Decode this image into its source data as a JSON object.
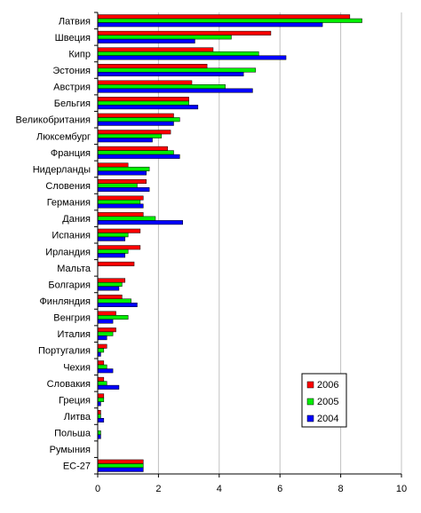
{
  "chart_data": {
    "type": "bar",
    "orientation": "horizontal",
    "categories": [
      "Латвия",
      "Швеция",
      "Кипр",
      "Эстония",
      "Австрия",
      "Бельгия",
      "Великобритания",
      "Люксембург",
      "Франция",
      "Нидерланды",
      "Словения",
      "Германия",
      "Дания",
      "Испания",
      "Ирландия",
      "Мальта",
      "Болгария",
      "Финляндия",
      "Венгрия",
      "Италия",
      "Португалия",
      "Чехия",
      "Словакия",
      "Греция",
      "Литва",
      "Польша",
      "Румыния",
      "ЕС-27"
    ],
    "series": [
      {
        "name": "2006",
        "color": "#ff0000",
        "values": [
          8.3,
          5.7,
          3.8,
          3.6,
          3.1,
          3.0,
          2.5,
          2.4,
          2.3,
          1.0,
          1.6,
          1.5,
          1.5,
          1.4,
          1.4,
          1.2,
          0.9,
          0.8,
          0.6,
          0.6,
          0.3,
          0.2,
          0.2,
          0.2,
          0.1,
          0.0,
          0.0,
          1.5
        ]
      },
      {
        "name": "2005",
        "color": "#00ee00",
        "values": [
          8.7,
          4.4,
          5.3,
          5.2,
          4.2,
          3.0,
          2.7,
          2.1,
          2.5,
          1.7,
          1.3,
          1.4,
          1.9,
          1.0,
          1.0,
          0.0,
          0.8,
          1.1,
          1.0,
          0.5,
          0.2,
          0.3,
          0.3,
          0.2,
          0.1,
          0.1,
          0.0,
          1.5
        ]
      },
      {
        "name": "2004",
        "color": "#0000ff",
        "values": [
          7.4,
          3.2,
          6.2,
          4.8,
          5.1,
          3.3,
          2.5,
          1.8,
          2.7,
          1.6,
          1.7,
          1.5,
          2.8,
          0.9,
          0.9,
          0.0,
          0.7,
          1.3,
          0.5,
          0.3,
          0.1,
          0.5,
          0.7,
          0.1,
          0.2,
          0.1,
          0.0,
          1.5
        ]
      }
    ],
    "xlim": [
      0,
      10
    ],
    "xticks": [
      "0",
      "2",
      "4",
      "6",
      "8",
      "10"
    ],
    "grid": "vertical",
    "legend_position": "bottom-right"
  }
}
